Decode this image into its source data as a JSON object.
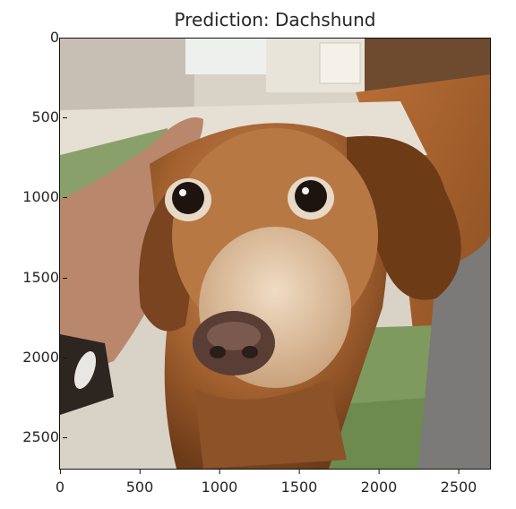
{
  "figure": {
    "title": "Prediction: Dachshund",
    "image_subject": "dachshund-photo",
    "x_axis": {
      "ticks": [
        "0",
        "500",
        "1000",
        "1500",
        "2000",
        "2500"
      ],
      "range": [
        0,
        2700
      ]
    },
    "y_axis": {
      "ticks": [
        "0",
        "500",
        "1000",
        "1500",
        "2000",
        "2500"
      ],
      "range": [
        0,
        2700
      ],
      "inverted": true
    }
  }
}
